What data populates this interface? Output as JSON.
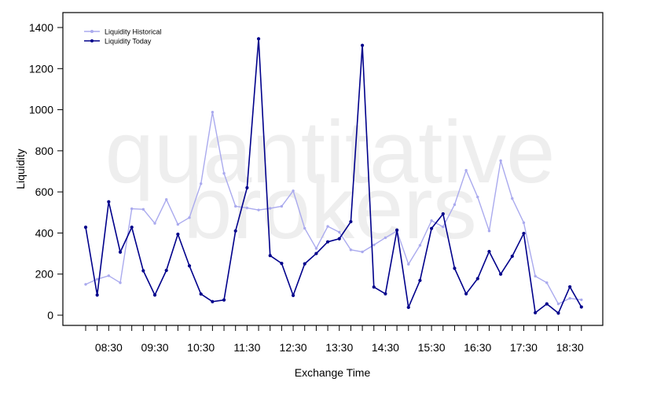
{
  "chart_data": {
    "type": "line",
    "xlabel": "Exchange Time",
    "ylabel": "Liquidity",
    "ylim": [
      -50,
      1475
    ],
    "y_ticks": [
      0,
      200,
      400,
      600,
      800,
      1000,
      1200,
      1400
    ],
    "x_tick_labels": [
      "08:30",
      "09:30",
      "10:30",
      "11:30",
      "12:30",
      "13:30",
      "14:30",
      "15:30",
      "16:30",
      "17:30",
      "18:30"
    ],
    "x": [
      "08:00",
      "08:15",
      "08:30",
      "08:45",
      "09:00",
      "09:15",
      "09:30",
      "09:45",
      "10:00",
      "10:15",
      "10:30",
      "10:45",
      "11:00",
      "11:15",
      "11:30",
      "11:45",
      "12:00",
      "12:15",
      "12:30",
      "12:45",
      "13:00",
      "13:15",
      "13:30",
      "13:45",
      "14:00",
      "14:15",
      "14:30",
      "14:45",
      "15:00",
      "15:15",
      "15:30",
      "15:45",
      "16:00",
      "16:15",
      "16:30",
      "16:45",
      "17:00",
      "17:15",
      "17:30",
      "17:45",
      "18:00",
      "18:15",
      "18:30",
      "18:45"
    ],
    "series": [
      {
        "name": "Liquidity Historical",
        "color": "#aaaaee",
        "values": [
          150,
          175,
          192,
          158,
          518,
          515,
          447,
          563,
          442,
          475,
          640,
          988,
          690,
          530,
          522,
          512,
          520,
          530,
          605,
          423,
          325,
          432,
          404,
          318,
          308,
          342,
          377,
          410,
          248,
          340,
          460,
          430,
          538,
          705,
          575,
          410,
          752,
          568,
          450,
          190,
          158,
          55,
          82,
          75
        ]
      },
      {
        "name": "Liquidity Today",
        "color": "#00008b",
        "values": [
          428,
          98,
          552,
          307,
          428,
          216,
          98,
          218,
          394,
          240,
          103,
          66,
          74,
          410,
          620,
          1345,
          290,
          252,
          96,
          250,
          300,
          357,
          372,
          455,
          1313,
          137,
          104,
          414,
          38,
          169,
          422,
          493,
          228,
          104,
          178,
          310,
          200,
          287,
          398,
          12,
          55,
          10,
          138,
          40
        ]
      }
    ],
    "legend_position": "top-left",
    "grid": false,
    "watermark": [
      "quantitative",
      "brokers"
    ]
  }
}
